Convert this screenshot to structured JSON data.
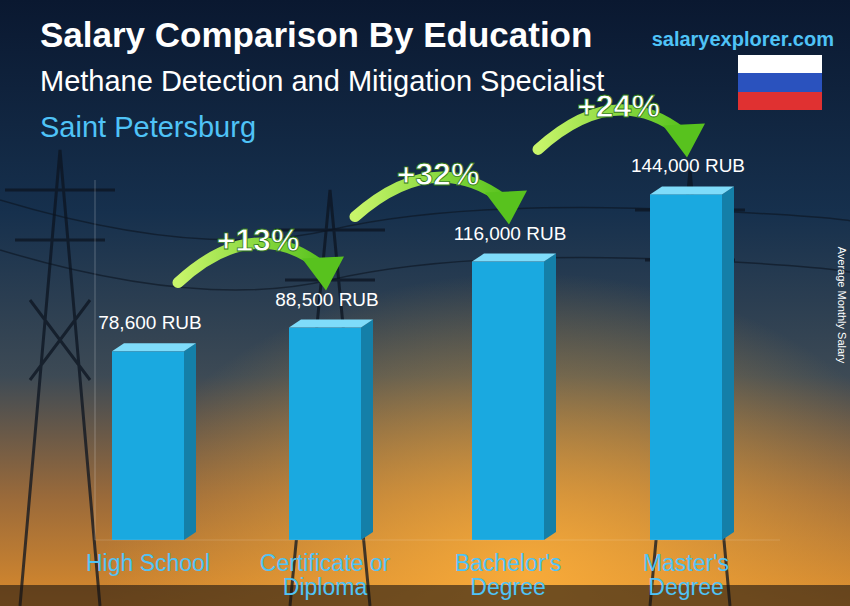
{
  "chart_data": {
    "type": "bar",
    "title": "Salary Comparison By Education",
    "subtitle": "Methane Detection and Mitigation Specialist",
    "location": "Saint Petersburg",
    "source": "salaryexplorer.com",
    "ylabel": "Average Monthly Salary",
    "categories": [
      "High School",
      "Certificate or Diploma",
      "Bachelor's Degree",
      "Master's Degree"
    ],
    "values": [
      78600,
      88500,
      116000,
      144000
    ],
    "value_labels": [
      "78,600 RUB",
      "88,500 RUB",
      "116,000 RUB",
      "144,000 RUB"
    ],
    "annotations": [
      "+13%",
      "+32%",
      "+24%"
    ],
    "color": "#1aa9e0",
    "ylim": [
      0,
      150000
    ],
    "data_labels": true,
    "tick_labels": "x",
    "grid": false
  }
}
